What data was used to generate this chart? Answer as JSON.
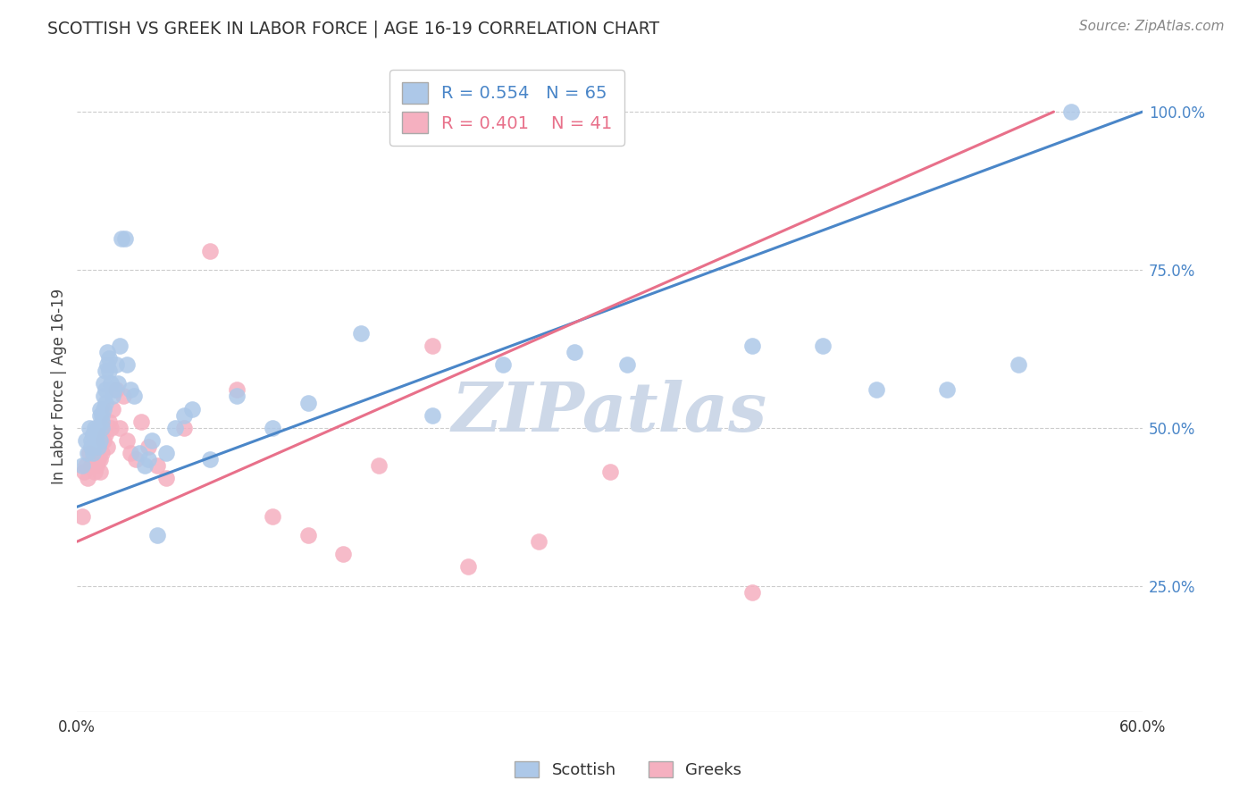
{
  "title": "SCOTTISH VS GREEK IN LABOR FORCE | AGE 16-19 CORRELATION CHART",
  "source": "Source: ZipAtlas.com",
  "ylabel": "In Labor Force | Age 16-19",
  "xlim": [
    0.0,
    0.6
  ],
  "ylim": [
    0.05,
    1.08
  ],
  "xtick_positions": [
    0.0,
    0.1,
    0.2,
    0.3,
    0.4,
    0.5,
    0.6
  ],
  "xtick_labels": [
    "0.0%",
    "",
    "",
    "",
    "",
    "",
    "60.0%"
  ],
  "yticks_right": [
    0.25,
    0.5,
    0.75,
    1.0
  ],
  "ytick_right_labels": [
    "25.0%",
    "50.0%",
    "75.0%",
    "100.0%"
  ],
  "R_scottish": 0.554,
  "N_scottish": 65,
  "R_greek": 0.401,
  "N_greek": 41,
  "scottish_color": "#adc8e8",
  "greek_color": "#f5b0c0",
  "scottish_line_color": "#4a86c8",
  "greek_line_color": "#e8708a",
  "watermark": "ZIPatlas",
  "watermark_color": "#cdd8e8",
  "scottish_x": [
    0.003,
    0.005,
    0.006,
    0.007,
    0.008,
    0.008,
    0.009,
    0.009,
    0.01,
    0.01,
    0.011,
    0.011,
    0.012,
    0.012,
    0.013,
    0.013,
    0.013,
    0.014,
    0.014,
    0.014,
    0.015,
    0.015,
    0.015,
    0.016,
    0.016,
    0.016,
    0.017,
    0.017,
    0.018,
    0.018,
    0.019,
    0.02,
    0.021,
    0.022,
    0.023,
    0.024,
    0.025,
    0.027,
    0.028,
    0.03,
    0.032,
    0.035,
    0.038,
    0.04,
    0.042,
    0.045,
    0.05,
    0.055,
    0.06,
    0.065,
    0.075,
    0.09,
    0.11,
    0.13,
    0.16,
    0.2,
    0.24,
    0.28,
    0.31,
    0.38,
    0.42,
    0.45,
    0.49,
    0.53,
    0.56
  ],
  "scottish_y": [
    0.44,
    0.48,
    0.46,
    0.5,
    0.47,
    0.48,
    0.49,
    0.46,
    0.5,
    0.47,
    0.48,
    0.49,
    0.47,
    0.5,
    0.52,
    0.48,
    0.53,
    0.51,
    0.5,
    0.52,
    0.53,
    0.55,
    0.57,
    0.56,
    0.54,
    0.59,
    0.6,
    0.62,
    0.61,
    0.59,
    0.57,
    0.55,
    0.56,
    0.6,
    0.57,
    0.63,
    0.8,
    0.8,
    0.6,
    0.56,
    0.55,
    0.46,
    0.44,
    0.45,
    0.48,
    0.33,
    0.46,
    0.5,
    0.52,
    0.53,
    0.45,
    0.55,
    0.5,
    0.54,
    0.65,
    0.52,
    0.6,
    0.62,
    0.6,
    0.63,
    0.63,
    0.56,
    0.56,
    0.6,
    1.0
  ],
  "greek_x": [
    0.004,
    0.005,
    0.006,
    0.007,
    0.008,
    0.009,
    0.01,
    0.011,
    0.012,
    0.013,
    0.013,
    0.014,
    0.015,
    0.016,
    0.017,
    0.018,
    0.019,
    0.02,
    0.022,
    0.024,
    0.026,
    0.028,
    0.03,
    0.033,
    0.036,
    0.04,
    0.045,
    0.05,
    0.06,
    0.075,
    0.09,
    0.11,
    0.13,
    0.15,
    0.17,
    0.2,
    0.22,
    0.26,
    0.3,
    0.38,
    0.003
  ],
  "greek_y": [
    0.43,
    0.44,
    0.42,
    0.46,
    0.44,
    0.45,
    0.43,
    0.44,
    0.45,
    0.43,
    0.45,
    0.46,
    0.48,
    0.49,
    0.47,
    0.51,
    0.5,
    0.53,
    0.56,
    0.5,
    0.55,
    0.48,
    0.46,
    0.45,
    0.51,
    0.47,
    0.44,
    0.42,
    0.5,
    0.78,
    0.56,
    0.36,
    0.33,
    0.3,
    0.44,
    0.63,
    0.28,
    0.32,
    0.43,
    0.24,
    0.36
  ],
  "blue_line_x0": 0.0,
  "blue_line_y0": 0.375,
  "blue_line_x1": 0.6,
  "blue_line_y1": 1.0,
  "pink_line_x0": 0.0,
  "pink_line_y0": 0.32,
  "pink_line_x1": 0.55,
  "pink_line_y1": 1.0
}
